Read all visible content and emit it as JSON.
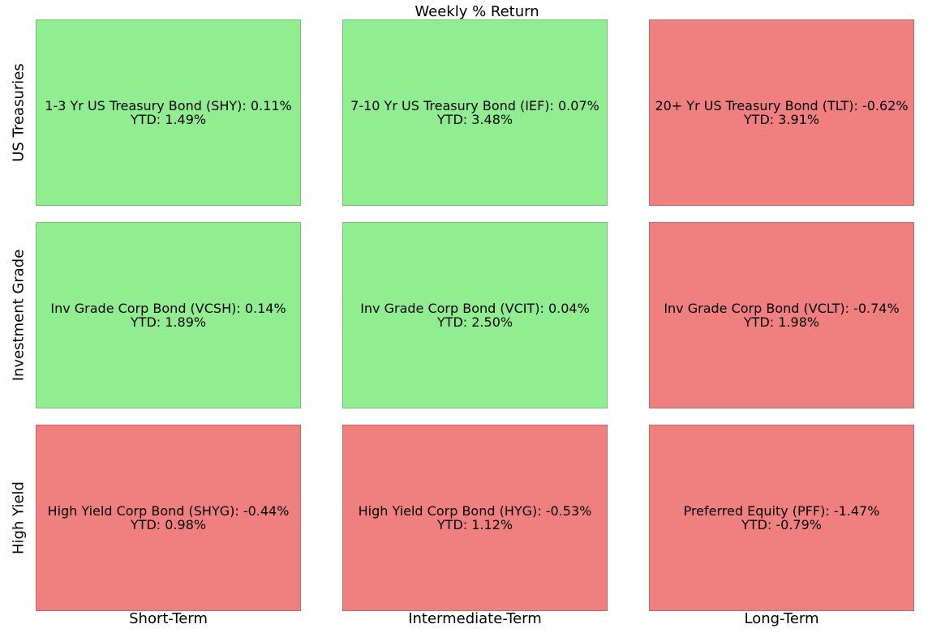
{
  "chart_data": {
    "type": "heatmap",
    "title": "Weekly % Return",
    "columns": [
      "Short-Term",
      "Intermediate-Term",
      "Long-Term"
    ],
    "rows": [
      "US Treasuries",
      "Investment Grade",
      "High Yield"
    ],
    "colors": {
      "positive": "#90ee90",
      "negative": "#f08080"
    },
    "cells": [
      [
        {
          "name": "1-3 Yr US Treasury Bond (SHY)",
          "weekly": 0.11,
          "weekly_label": "0.11%",
          "ytd": 1.49,
          "ytd_label": "1.49%"
        },
        {
          "name": "7-10 Yr US Treasury Bond (IEF)",
          "weekly": 0.07,
          "weekly_label": "0.07%",
          "ytd": 3.48,
          "ytd_label": "3.48%"
        },
        {
          "name": "20+ Yr US Treasury Bond (TLT)",
          "weekly": -0.62,
          "weekly_label": "-0.62%",
          "ytd": 3.91,
          "ytd_label": "3.91%"
        }
      ],
      [
        {
          "name": "Inv Grade Corp Bond (VCSH)",
          "weekly": 0.14,
          "weekly_label": "0.14%",
          "ytd": 1.89,
          "ytd_label": "1.89%"
        },
        {
          "name": "Inv Grade Corp Bond (VCIT)",
          "weekly": 0.04,
          "weekly_label": "0.04%",
          "ytd": 2.5,
          "ytd_label": "2.50%"
        },
        {
          "name": "Inv Grade Corp Bond (VCLT)",
          "weekly": -0.74,
          "weekly_label": "-0.74%",
          "ytd": 1.98,
          "ytd_label": "1.98%"
        }
      ],
      [
        {
          "name": "High Yield Corp Bond (SHYG)",
          "weekly": -0.44,
          "weekly_label": "-0.44%",
          "ytd": 0.98,
          "ytd_label": "0.98%"
        },
        {
          "name": "High Yield Corp Bond (HYG)",
          "weekly": -0.53,
          "weekly_label": "-0.53%",
          "ytd": 1.12,
          "ytd_label": "1.12%"
        },
        {
          "name": "Preferred Equity (PFF)",
          "weekly": -1.47,
          "weekly_label": "-1.47%",
          "ytd": -0.79,
          "ytd_label": "-0.79%"
        }
      ]
    ]
  }
}
